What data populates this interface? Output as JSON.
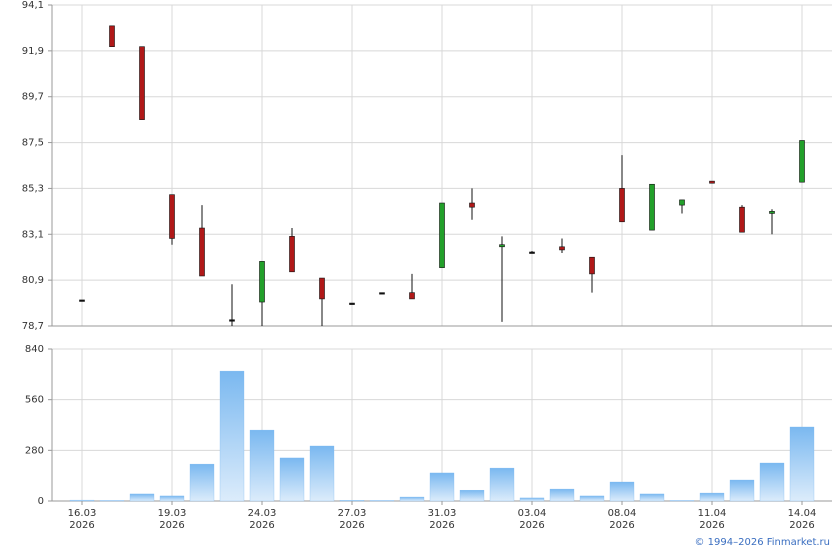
{
  "chart_data": [
    {
      "type": "candlestick",
      "open": [
        79.95,
        93.1,
        92.1,
        85.0,
        83.4,
        79.0,
        79.85,
        83.0,
        81.0,
        79.8,
        80.3,
        80.3,
        81.5,
        84.6,
        82.5,
        82.25,
        82.5,
        82.0,
        85.3,
        83.3,
        84.5,
        85.65,
        84.4,
        84.1,
        85.6
      ],
      "high": [
        79.95,
        93.1,
        92.1,
        85.0,
        84.5,
        80.7,
        81.8,
        83.4,
        81.0,
        79.8,
        80.3,
        81.2,
        84.6,
        85.3,
        83.0,
        82.3,
        82.9,
        82.0,
        86.9,
        85.5,
        84.75,
        85.65,
        84.5,
        84.3,
        87.6
      ],
      "low": [
        79.95,
        92.1,
        88.6,
        82.6,
        81.1,
        78.7,
        78.7,
        81.3,
        78.7,
        79.8,
        80.3,
        80.0,
        81.5,
        83.8,
        78.9,
        82.2,
        82.2,
        80.3,
        83.7,
        83.3,
        84.1,
        85.55,
        83.2,
        83.1,
        85.6
      ],
      "close": [
        79.95,
        92.1,
        88.6,
        82.9,
        81.1,
        79.0,
        81.8,
        81.3,
        80.0,
        79.8,
        80.3,
        80.0,
        84.6,
        84.4,
        82.6,
        82.25,
        82.35,
        81.2,
        83.7,
        85.5,
        84.75,
        85.55,
        83.2,
        84.2,
        87.6
      ],
      "up_color": "#22a02a",
      "down_color": "#b01818",
      "ylim": [
        78.7,
        94.1
      ],
      "yticks": [
        {
          "value": 78.7,
          "label": "78,7"
        },
        {
          "value": 80.9,
          "label": "80,9"
        },
        {
          "value": 83.1,
          "label": "83,1"
        },
        {
          "value": 85.3,
          "label": "85,3"
        },
        {
          "value": 87.5,
          "label": "87,5"
        },
        {
          "value": 89.7,
          "label": "89,7"
        },
        {
          "value": 91.9,
          "label": "91,9"
        },
        {
          "value": 94.1,
          "label": "94,1"
        }
      ],
      "grid": true
    },
    {
      "type": "bar",
      "categories": [
        "16.03",
        null,
        null,
        "19.03",
        null,
        null,
        "24.03",
        null,
        null,
        "27.03",
        null,
        null,
        "31.03",
        null,
        null,
        "03.04",
        null,
        null,
        "08.04",
        null,
        null,
        "11.04",
        null,
        null,
        "14.04"
      ],
      "category_years": [
        "2026",
        null,
        null,
        "2026",
        null,
        null,
        "2026",
        null,
        null,
        "2026",
        null,
        null,
        "2026",
        null,
        null,
        "2026",
        null,
        null,
        "2026",
        null,
        null,
        "2026",
        null,
        null,
        "2026"
      ],
      "values": [
        5,
        3,
        39,
        28,
        204,
        718,
        392,
        238,
        304,
        4,
        3,
        22,
        155,
        60,
        182,
        17,
        66,
        28,
        105,
        39,
        3,
        44,
        116,
        210,
        409
      ],
      "color": "#7ab8f0",
      "ylim": [
        0,
        840
      ],
      "yticks": [
        0,
        280,
        560,
        840
      ],
      "grid": true,
      "credit": "© 1994–2026 Finmarket.ru"
    }
  ]
}
